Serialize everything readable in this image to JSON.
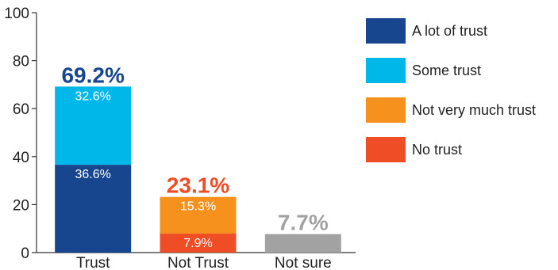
{
  "chart_data": {
    "type": "bar",
    "stacked": true,
    "categories": [
      "Trust",
      "Not Trust",
      "Not sure"
    ],
    "series": [
      {
        "name": "A lot of trust",
        "color": "#17468f",
        "values": [
          36.6,
          null,
          null
        ],
        "labels": [
          "36.6%",
          "",
          ""
        ]
      },
      {
        "name": "Some trust",
        "color": "#00b7ea",
        "values": [
          32.6,
          null,
          null
        ],
        "labels": [
          "32.6%",
          "",
          ""
        ]
      },
      {
        "name": "No trust",
        "color": "#ef4d26",
        "values": [
          null,
          7.9,
          null
        ],
        "labels": [
          "",
          "7.9%",
          ""
        ]
      },
      {
        "name": "Not very much trust",
        "color": "#f6911e",
        "values": [
          null,
          15.3,
          null
        ],
        "labels": [
          "",
          "15.3%",
          ""
        ]
      },
      {
        "name": "",
        "color": "#a2a2a2",
        "values": [
          null,
          null,
          7.7
        ],
        "labels": [
          "",
          "",
          ""
        ]
      }
    ],
    "totals": [
      "69.2%",
      "23.1%",
      "7.7%"
    ],
    "total_colors": [
      "#17468f",
      "#ef4d26",
      "#a2a2a2"
    ],
    "yticks": [
      "0",
      "20",
      "40",
      "60",
      "80",
      "100"
    ],
    "ylim": [
      0,
      100
    ],
    "legend": [
      {
        "name": "A lot of trust",
        "color": "#17468f"
      },
      {
        "name": "Some trust",
        "color": "#00b7ea"
      },
      {
        "name": "Not very much trust",
        "color": "#f6911e"
      },
      {
        "name": "No trust",
        "color": "#ef4d26"
      }
    ],
    "legend_position": "right",
    "grid": false,
    "title": "",
    "xlabel": "",
    "ylabel": ""
  }
}
